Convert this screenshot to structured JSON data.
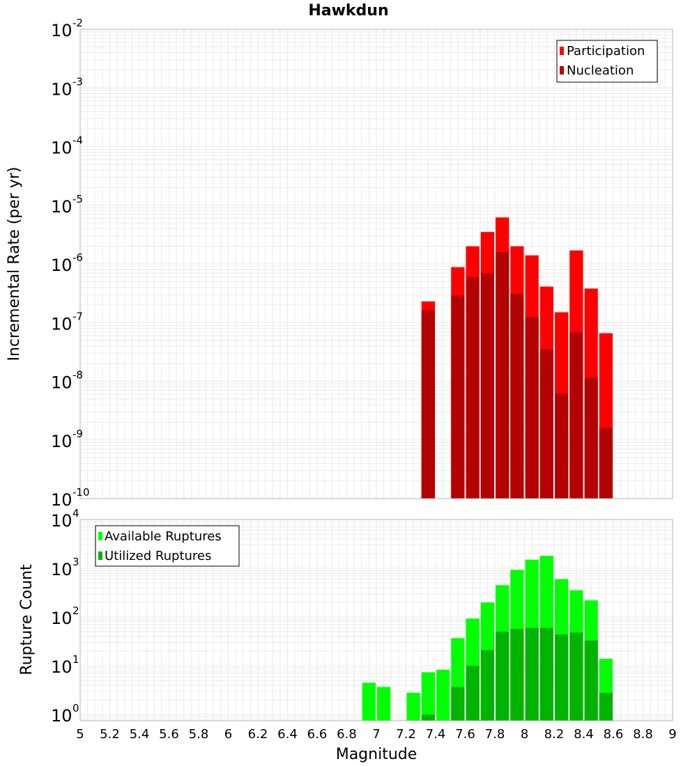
{
  "title": "Hawkdun",
  "colors": {
    "participation": "#ff0000",
    "nucleation": "#b30000",
    "available": "#00ff00",
    "utilized": "#00b300",
    "grid": "#ebebeb",
    "frame": "#b4b4b4"
  },
  "chart_data": [
    {
      "type": "bar",
      "title": "Hawkdun",
      "xlabel": "Magnitude",
      "ylabel": "Incremental Rate (per yr)",
      "yscale": "log",
      "xlim": [
        5,
        9
      ],
      "ylim": [
        1e-10,
        0.01
      ],
      "grid": true,
      "legend_position": "top-right",
      "bin_width": 0.1,
      "x": [
        7.35,
        7.55,
        7.65,
        7.75,
        7.85,
        7.95,
        8.05,
        8.15,
        8.25,
        8.35,
        8.45,
        8.55
      ],
      "series": [
        {
          "name": "Participation",
          "color": "#ff0000",
          "values": [
            2.3e-07,
            8.8e-07,
            2e-06,
            3.5e-06,
            6.2e-06,
            2e-06,
            1.4e-06,
            4.1e-07,
            1.5e-07,
            1.7e-06,
            3.8e-07,
            6.6e-08
          ]
        },
        {
          "name": "Nucleation",
          "color": "#b30000",
          "values": [
            1.6e-07,
            2.9e-07,
            6e-07,
            6.9e-07,
            1.6e-06,
            3.1e-07,
            1.25e-07,
            3.5e-08,
            6.2e-09,
            6.8e-08,
            1.15e-08,
            1.6e-09
          ]
        }
      ]
    },
    {
      "type": "bar",
      "xlabel": "Magnitude",
      "ylabel": "Rupture Count",
      "yscale": "log",
      "xlim": [
        5,
        9
      ],
      "ylim": [
        0.75,
        10000
      ],
      "grid": true,
      "legend_position": "top-left",
      "bin_width": 0.1,
      "x": [
        6.95,
        7.05,
        7.25,
        7.35,
        7.45,
        7.55,
        7.65,
        7.75,
        7.85,
        7.95,
        8.05,
        8.15,
        8.25,
        8.35,
        8.45,
        8.55
      ],
      "series": [
        {
          "name": "Available Ruptures",
          "color": "#00ff00",
          "values": [
            4.5,
            3.7,
            2.8,
            7.4,
            8.3,
            37,
            93,
            200,
            450,
            930,
            1500,
            1800,
            600,
            355,
            220,
            14
          ]
        },
        {
          "name": "Utilized Ruptures",
          "color": "#00b300",
          "values": [
            0,
            0,
            0,
            1,
            0,
            3.7,
            10,
            21,
            50,
            57,
            60,
            60,
            44,
            48,
            33,
            2.8
          ]
        }
      ]
    }
  ]
}
